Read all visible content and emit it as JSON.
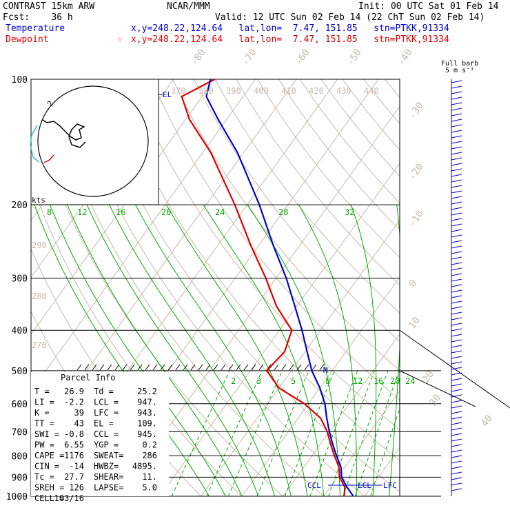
{
  "header": {
    "line1_left": "CONTRAST 15km ARW",
    "line1_center": "NCAR/MMM",
    "line1_right": "Init: 00 UTC Sat 01 Feb 14",
    "line2_left": "Fcst:    36 h",
    "line2_right": "Valid: 12 UTC Sun 02 Feb 14 (22 ChT Sun 02 Feb 14)",
    "temp_label": "Temperature",
    "temp_info": "x,y=248.22,124.64   lat,lon=  7.47, 151.85   stn=PTKK,91334",
    "dew_label": "Dewpoint",
    "dew_star": "☆",
    "dew_info": "x,y=248.22,124.64   lat,lon=  7.47, 151.85   stn=PTKK,91334"
  },
  "barb_header": {
    "line1": "Full barb",
    "line2": "5 m s⁻¹"
  },
  "hodograph": {
    "unit_label": "kts",
    "ring_label": "2"
  },
  "parcel_info": {
    "title": "Parcel Info",
    "rows": [
      [
        "T   =",
        "26.9",
        "Td =",
        "25.2"
      ],
      [
        "LI  =",
        "-2.2",
        "LCL =",
        "947."
      ],
      [
        "K   =",
        "39",
        "LFC =",
        "943."
      ],
      [
        "TT  =",
        "43",
        "EL  =",
        "109."
      ],
      [
        "SWI =",
        "-0.8",
        "CCL =",
        "945."
      ],
      [
        "PW  =",
        "6.55",
        "YGP =",
        "0.2"
      ],
      [
        "CAPE =",
        "1176",
        "SWEAT=",
        "286"
      ],
      [
        "CIN  =",
        "-14",
        "HWBZ=",
        "4895."
      ],
      [
        "Tc  =",
        "27.7",
        "SHEAR=",
        "11."
      ],
      [
        "SREH =",
        "126",
        "LAPSE=",
        "5.0"
      ],
      [
        "CELL =",
        "103/16",
        "",
        ""
      ]
    ]
  },
  "markers": {
    "el": "EL",
    "ccl": "CCL",
    "lcl": "LCL",
    "lfc": "LFC",
    "m": "M"
  },
  "colors": {
    "temperature": "#0000cc",
    "dewpoint": "#dd0000",
    "isotherm": "#c8b8a8",
    "dry_adiabat": "#c8b8a8",
    "moist_adiabat": "#00aa00",
    "mixing_ratio": "#00aa00",
    "wind_barbs": "#0000cc"
  },
  "chart_data": {
    "type": "line",
    "xlabel": "",
    "ylabel": "",
    "y_scale": "log-pressure",
    "ylim": [
      1000,
      100
    ],
    "pressure_ticks": [
      "100",
      "200",
      "300",
      "400",
      "500",
      "600",
      "700",
      "800",
      "900",
      "1000"
    ],
    "isotherm_labels": [
      "-80",
      "-70",
      "-60",
      "-50",
      "-40",
      "-30",
      "-20",
      "-10",
      "0",
      "10",
      "20",
      "30",
      "40"
    ],
    "theta_labels_top": [
      "370",
      "380",
      "390",
      "400",
      "410",
      "420",
      "430",
      "440"
    ],
    "theta_labels_left": [
      "290",
      "280",
      "270"
    ],
    "moist_labels": [
      "8",
      "12",
      "16",
      "20",
      "24",
      "28",
      "32"
    ],
    "mixing_labels": [
      "2",
      "3",
      "5",
      "8",
      "12",
      "16",
      "20",
      "24"
    ],
    "series": [
      {
        "name": "Temperature",
        "points": [
          [
            1000,
            27.2
          ],
          [
            950,
            24.0
          ],
          [
            925,
            22.5
          ],
          [
            900,
            21.0
          ],
          [
            850,
            19.0
          ],
          [
            800,
            16.0
          ],
          [
            750,
            13.0
          ],
          [
            700,
            10.0
          ],
          [
            650,
            7.0
          ],
          [
            600,
            4.0
          ],
          [
            550,
            0.0
          ],
          [
            500,
            -5.0
          ],
          [
            450,
            -9.5
          ],
          [
            400,
            -14.5
          ],
          [
            350,
            -20.5
          ],
          [
            300,
            -27.5
          ],
          [
            250,
            -36.5
          ],
          [
            200,
            -47.0
          ],
          [
            150,
            -61.5
          ],
          [
            125,
            -72.0
          ],
          [
            110,
            -79.0
          ],
          [
            100,
            -81.0
          ]
        ]
      },
      {
        "name": "Dewpoint",
        "points": [
          [
            1000,
            25.0
          ],
          [
            950,
            23.5
          ],
          [
            925,
            22.0
          ],
          [
            900,
            20.5
          ],
          [
            850,
            18.5
          ],
          [
            800,
            15.5
          ],
          [
            750,
            12.5
          ],
          [
            700,
            9.5
          ],
          [
            650,
            5.5
          ],
          [
            600,
            -1.0
          ],
          [
            550,
            -10.0
          ],
          [
            500,
            -16.0
          ],
          [
            450,
            -15.0
          ],
          [
            400,
            -17.0
          ],
          [
            350,
            -25.0
          ],
          [
            300,
            -32.5
          ],
          [
            250,
            -42.0
          ],
          [
            200,
            -53.0
          ],
          [
            150,
            -68.0
          ],
          [
            125,
            -79.0
          ],
          [
            110,
            -85.0
          ],
          [
            100,
            -80.0
          ]
        ]
      }
    ],
    "annotations": [
      "EL",
      "CCL",
      "LCL",
      "LFC",
      "M"
    ]
  }
}
